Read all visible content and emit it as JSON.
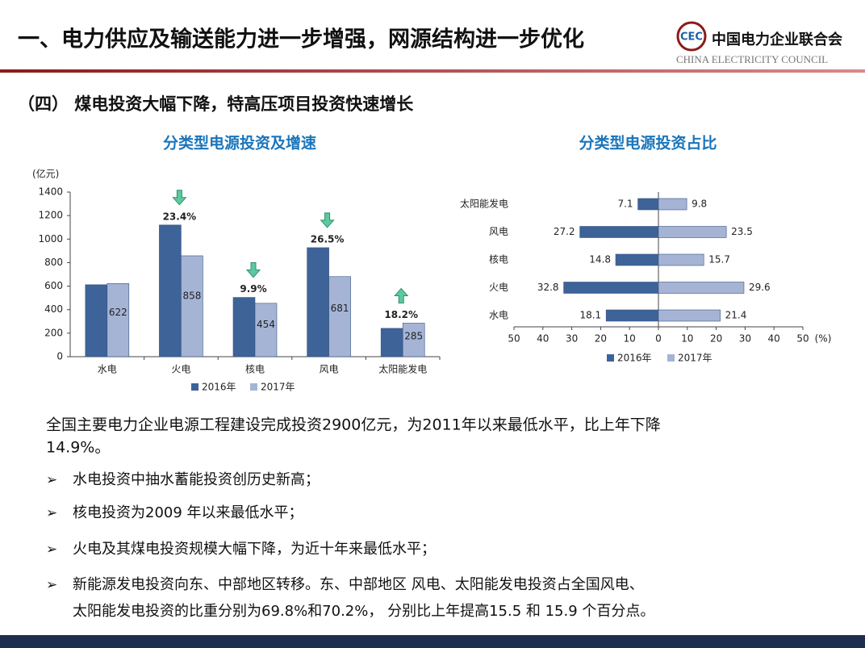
{
  "header": {
    "title": "一、电力供应及输送能力进一步增强，网源结构进一步优化",
    "logo_name": "中国电力企业联合会",
    "logo_english": "CHINA ELECTRICITY COUNCIL"
  },
  "section_title": "（四） 煤电投资大幅下降，特高压项目投资快速增长",
  "chart_data": [
    {
      "type": "bar",
      "title": "分类型电源投资及增速",
      "y_label": "(亿元)",
      "categories": [
        "水电",
        "火电",
        "核电",
        "风电",
        "太阳能发电"
      ],
      "series": [
        {
          "name": "2016年",
          "color": "#3d6398",
          "values": [
            612,
            1120,
            504,
            927,
            241
          ]
        },
        {
          "name": "2017年",
          "color": "#a5b4d5",
          "values": [
            622,
            858,
            454,
            681,
            285
          ]
        }
      ],
      "change_labels": [
        null,
        "23.4%",
        "9.9%",
        "26.5%",
        "18.2%"
      ],
      "change_directions": [
        null,
        "down",
        "down",
        "down",
        "up"
      ],
      "ylim": [
        0,
        1400
      ],
      "yticks": [
        0,
        200,
        400,
        600,
        800,
        1000,
        1200,
        1400
      ],
      "grid": false
    },
    {
      "type": "butterfly",
      "title": "分类型电源投资占比",
      "x_unit": "(%)",
      "categories": [
        "太阳能发电",
        "风电",
        "核电",
        "火电",
        "水电"
      ],
      "series": [
        {
          "name": "2016年",
          "color": "#3d6398",
          "direction": "left",
          "values": [
            7.1,
            27.2,
            14.8,
            32.8,
            18.1
          ]
        },
        {
          "name": "2017年",
          "color": "#a5b4d5",
          "direction": "right",
          "values": [
            9.8,
            23.5,
            15.7,
            29.6,
            21.4
          ]
        }
      ],
      "xlim": [
        -50,
        50
      ],
      "xticks": [
        {
          "value": -50,
          "label": "50"
        },
        {
          "value": -40,
          "label": "40"
        },
        {
          "value": -30,
          "label": "30"
        },
        {
          "value": -20,
          "label": "20"
        },
        {
          "value": -10,
          "label": "10"
        },
        0,
        10,
        20,
        30,
        40,
        50
      ],
      "grid": false
    }
  ],
  "summary": [
    "全国主要电力企业电源工程建设完成投资2900亿元，为2011年以来最低水平，比上年下降",
    "14.9%。"
  ],
  "bullets": [
    [
      "水电投资中抽水蓄能投资创历史新高；"
    ],
    [
      "核电投资为2009 年以来最低水平；"
    ],
    [
      "火电及其煤电投资规模大幅下降，为近十年来最低水平；"
    ],
    [
      "新能源发电投资向东、中部地区转移。东、中部地区 风电、太阳能发电投资占全国风电、",
      "太阳能发电投资的比重分别为69.8%和70.2%， 分别比上年提高15.5 和 15.9 个百分点。"
    ]
  ]
}
